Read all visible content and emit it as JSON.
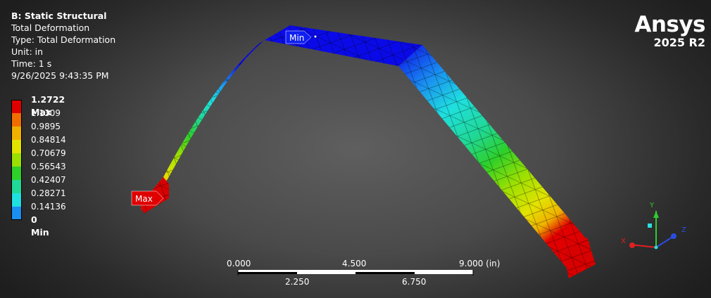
{
  "info": {
    "title": "B: Static Structural",
    "result": "Total Deformation",
    "type": "Type: Total Deformation",
    "unit": "Unit: in",
    "time": "Time: 1 s",
    "timestamp": "9/26/2025 9:43:35 PM"
  },
  "legend": [
    {
      "label": "1.2722 Max",
      "color": "#e00000",
      "bold": true
    },
    {
      "label": "1.1309",
      "color": "#f26d00"
    },
    {
      "label": "0.9895",
      "color": "#f0b000"
    },
    {
      "label": "0.84814",
      "color": "#e3e300"
    },
    {
      "label": "0.70679",
      "color": "#9be000"
    },
    {
      "label": "0.56543",
      "color": "#2ed02a"
    },
    {
      "label": "0.42407",
      "color": "#20d897"
    },
    {
      "label": "0.28271",
      "color": "#1fe0df"
    },
    {
      "label": "0.14136",
      "color": "#1a8ff0"
    },
    {
      "label": "0 Min",
      "color": "#0a0ae8",
      "bold": true
    }
  ],
  "brand": {
    "name": "Ansys",
    "version": "2025 R2"
  },
  "probes": {
    "min": "Min",
    "max": "Max"
  },
  "scale": {
    "top": [
      "0.000",
      "4.500",
      "9.000 (in)"
    ],
    "bottom": [
      "2.250",
      "6.750"
    ]
  },
  "triad": {
    "x": "X",
    "y": "Y",
    "z": "Z"
  }
}
